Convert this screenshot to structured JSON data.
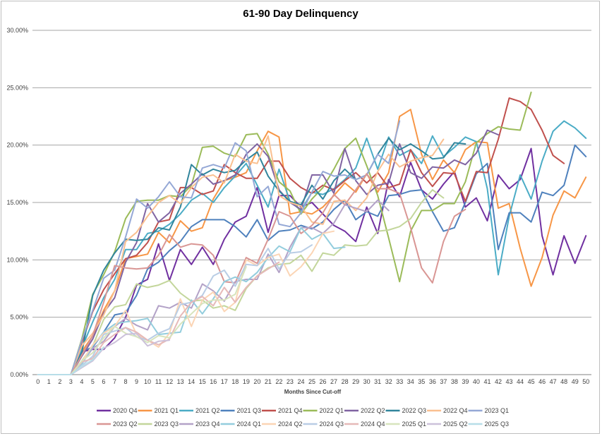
{
  "chart_data": {
    "type": "line",
    "title": "61-90 Day Delinquency",
    "xlabel": "Months Since Cut-off",
    "ylabel": "",
    "x": [
      0,
      1,
      2,
      3,
      4,
      5,
      6,
      7,
      8,
      9,
      10,
      11,
      12,
      13,
      14,
      15,
      16,
      17,
      18,
      19,
      20,
      21,
      22,
      23,
      24,
      25,
      26,
      27,
      28,
      29,
      30,
      31,
      32,
      33,
      34,
      35,
      36,
      37,
      38,
      39,
      40,
      41,
      42,
      43,
      44,
      45,
      46,
      47,
      48,
      49,
      50
    ],
    "ylim": [
      0,
      30
    ],
    "yticks": [
      "0.00%",
      "5.00%",
      "10.00%",
      "15.00%",
      "20.00%",
      "25.00%",
      "30.00%"
    ],
    "ytick_values": [
      0,
      5,
      10,
      15,
      20,
      25,
      30
    ],
    "grid": true,
    "legend_position": "bottom",
    "series": [
      {
        "name": "2020 Q4",
        "color": "#7030a0",
        "values": [
          0,
          0,
          0,
          0,
          2.0,
          2.2,
          2.2,
          3.2,
          5.0,
          7.8,
          8.3,
          11.4,
          8.2,
          10.9,
          9.6,
          11.1,
          9.6,
          11.8,
          13.3,
          13.8,
          16.3,
          12.4,
          15.6,
          15.6,
          14.6,
          15.0,
          14.0,
          13.0,
          12.5,
          11.6,
          14.6,
          12.3,
          17.0,
          15.5,
          18.5,
          16.1,
          15.3,
          16.6,
          17.7,
          14.6,
          15.4,
          13.4,
          17.4,
          16.2,
          17.0,
          19.7,
          12.1,
          8.7,
          12.1,
          9.7,
          12.1
        ]
      },
      {
        "name": "2021 Q1",
        "color": "#f79646",
        "values": [
          0,
          0,
          0,
          0,
          2.0,
          3.4,
          5.6,
          7.3,
          10.1,
          10.3,
          10.5,
          12.4,
          11.5,
          13.4,
          12.5,
          12.8,
          15.3,
          16.9,
          17.2,
          17.6,
          19.5,
          21.2,
          20.7,
          14.0,
          14.2,
          14.0,
          14.6,
          15.6,
          16.7,
          15.9,
          17.5,
          15.9,
          17.6,
          22.5,
          23.1,
          19.2,
          17.0,
          18.7,
          17.6,
          19.6,
          20.3,
          20.2,
          14.5,
          14.9,
          11.0,
          7.7,
          10.2,
          13.9,
          16.0,
          15.4,
          17.2
        ]
      },
      {
        "name": "2021 Q2",
        "color": "#4bacc6",
        "values": [
          0,
          0,
          0,
          0,
          2.3,
          4.6,
          6.7,
          8.3,
          10.9,
          10.9,
          12.3,
          12.5,
          13.1,
          14.0,
          15.2,
          15.8,
          15.0,
          16.3,
          17.3,
          18.4,
          16.5,
          14.6,
          17.9,
          15.1,
          14.3,
          15.9,
          15.7,
          16.2,
          17.0,
          18.0,
          20.6,
          17.9,
          20.7,
          19.1,
          19.6,
          18.4,
          20.8,
          19.0,
          19.8,
          20.7,
          20.3,
          16.2,
          8.7,
          13.8,
          17.4,
          15.3,
          18.6,
          21.2,
          22.1,
          21.5,
          20.6
        ]
      },
      {
        "name": "2021 Q3",
        "color": "#4f81bd",
        "values": [
          0,
          0,
          0,
          0,
          2.0,
          2.4,
          3.7,
          5.2,
          5.4,
          6.9,
          9.2,
          9.8,
          10.8,
          11.6,
          12.9,
          13.5,
          13.5,
          13.5,
          12.9,
          12.0,
          13.5,
          11.7,
          12.5,
          12.6,
          13.0,
          12.7,
          13.3,
          14.4,
          15.2,
          13.5,
          14.2,
          13.8,
          15.6,
          15.7,
          16.0,
          16.1,
          14.2,
          12.5,
          12.8,
          15.0,
          17.5,
          18.4,
          10.9,
          14.1,
          14.1,
          13.3,
          15.9,
          15.6,
          16.5,
          20.0,
          19.0
        ]
      },
      {
        "name": "2021 Q4",
        "color": "#c0504d",
        "values": [
          0,
          0,
          0,
          0,
          2.8,
          5.5,
          7.4,
          8.8,
          10.1,
          10.4,
          11.5,
          13.3,
          13.5,
          16.3,
          16.3,
          15.7,
          16.0,
          18.3,
          17.6,
          17.1,
          17.1,
          18.6,
          18.6,
          17.1,
          16.3,
          15.8,
          16.5,
          16.1,
          16.9,
          17.6,
          16.7,
          17.6,
          16.3,
          16.6,
          19.6,
          17.6,
          16.4,
          17.6,
          17.5,
          15.1,
          17.7,
          17.6,
          20.5,
          24.1,
          23.8,
          23.1,
          21.3,
          19.1,
          18.4,
          null,
          null
        ]
      },
      {
        "name": "2022 Q1",
        "color": "#9bbb59",
        "values": [
          0,
          0,
          0,
          0,
          3.1,
          7.0,
          8.7,
          10.7,
          13.6,
          15.1,
          15.2,
          15.2,
          15.6,
          15.5,
          16.5,
          19.8,
          19.9,
          19.3,
          19.0,
          20.9,
          21.0,
          19.2,
          16.8,
          16.0,
          14.0,
          15.3,
          16.3,
          17.9,
          19.7,
          20.6,
          18.2,
          15.6,
          11.9,
          8.1,
          12.5,
          14.3,
          14.3,
          14.9,
          14.9,
          16.8,
          20.2,
          21.0,
          21.6,
          21.4,
          21.3,
          24.6,
          null,
          null,
          null,
          null,
          null
        ]
      },
      {
        "name": "2022 Q2",
        "color": "#8064a2",
        "values": [
          0,
          0,
          0,
          0,
          1.6,
          3.1,
          5.4,
          6.7,
          9.8,
          11.5,
          14.9,
          13.3,
          14.1,
          15.8,
          16.6,
          17.5,
          16.6,
          16.9,
          17.4,
          19.2,
          20.1,
          19.0,
          16.1,
          15.0,
          14.4,
          17.4,
          17.4,
          15.8,
          19.7,
          16.9,
          15.7,
          16.5,
          16.7,
          20.1,
          17.6,
          17.1,
          18.1,
          18.0,
          18.7,
          18.3,
          19.3,
          21.3,
          20.9,
          null,
          null,
          null,
          null,
          null,
          null,
          null,
          null
        ]
      },
      {
        "name": "2022 Q3",
        "color": "#31859c",
        "values": [
          0,
          0,
          0,
          0,
          1.9,
          6.9,
          9.1,
          10.6,
          11.8,
          11.7,
          11.8,
          12.8,
          12.6,
          14.6,
          18.3,
          17.4,
          17.9,
          17.6,
          17.8,
          18.7,
          19.4,
          17.3,
          16.0,
          15.1,
          14.8,
          16.5,
          15.3,
          16.9,
          17.9,
          17.0,
          17.4,
          19.2,
          20.6,
          19.6,
          20.1,
          19.5,
          18.8,
          18.9,
          20.2,
          20.1,
          null,
          null,
          null,
          null,
          null,
          null,
          null,
          null,
          null,
          null,
          null
        ]
      },
      {
        "name": "2022 Q4",
        "color": "#fac090",
        "values": [
          0,
          0,
          0,
          0,
          2.5,
          3.6,
          5.2,
          7.3,
          11.6,
          12.4,
          13.8,
          15.0,
          15.6,
          14.9,
          16.3,
          17.2,
          17.4,
          16.7,
          19.2,
          18.6,
          18.4,
          20.8,
          15.6,
          15.0,
          14.7,
          13.3,
          13.1,
          15.1,
          15.2,
          14.3,
          15.4,
          17.7,
          19.2,
          18.1,
          18.6,
          18.9,
          19.1,
          20.5,
          null,
          null,
          null,
          null,
          null,
          null,
          null,
          null,
          null,
          null,
          null,
          null,
          null
        ]
      },
      {
        "name": "2023 Q1",
        "color": "#95a8d6",
        "values": [
          0,
          0,
          0,
          0,
          3.0,
          5.6,
          8.4,
          9.1,
          12.0,
          15.3,
          14.5,
          15.5,
          16.8,
          15.5,
          15.4,
          18.0,
          18.3,
          18.0,
          20.2,
          19.5,
          15.5,
          16.4,
          13.1,
          12.9,
          14.1,
          15.9,
          17.7,
          17.3,
          17.4,
          17.0,
          17.4,
          19.2,
          18.4,
          22.1,
          null,
          null,
          null,
          null,
          null,
          null,
          null,
          null,
          null,
          null,
          null,
          null,
          null,
          null,
          null,
          null,
          null
        ]
      },
      {
        "name": "2023 Q2",
        "color": "#d99694",
        "values": [
          0,
          0,
          0,
          0,
          1.7,
          3.4,
          6.3,
          9.5,
          9.3,
          9.2,
          9.3,
          10.4,
          12.2,
          11.1,
          11.4,
          11.3,
          10.4,
          8.1,
          8.0,
          10.2,
          9.7,
          11.8,
          14.2,
          13.8,
          12.3,
          13.0,
          14.1,
          15.7,
          14.8,
          16.1,
          17.5,
          16.2,
          16.2,
          15.8,
          12.8,
          9.3,
          8.0,
          11.6,
          13.8,
          14.4,
          null,
          null,
          null,
          null,
          null,
          null,
          null,
          null,
          null,
          null,
          null
        ]
      },
      {
        "name": "2023 Q3",
        "color": "#c3d69b",
        "values": [
          0,
          0,
          0,
          0,
          1.2,
          2.5,
          4.8,
          5.9,
          6.1,
          7.9,
          7.6,
          7.8,
          8.2,
          7.1,
          6.4,
          6.5,
          5.8,
          6.0,
          5.6,
          7.5,
          8.6,
          9.3,
          9.6,
          9.7,
          10.4,
          9.0,
          10.6,
          10.4,
          11.3,
          11.2,
          11.3,
          12.5,
          12.6,
          12.9,
          13.6,
          15.0,
          16.1,
          15.4,
          null,
          null,
          null,
          null,
          null,
          null,
          null,
          null,
          null,
          null,
          null,
          null,
          null
        ]
      },
      {
        "name": "2023 Q4",
        "color": "#b3a2c7",
        "values": [
          0,
          0,
          0,
          0,
          1.0,
          2.3,
          2.9,
          4.2,
          4.9,
          4.3,
          3.9,
          6.0,
          5.8,
          6.3,
          5.8,
          7.9,
          7.3,
          6.4,
          8.1,
          8.3,
          8.3,
          10.5,
          8.9,
          11.1,
          12.8,
          12.8,
          12.3,
          13.2,
          14.8,
          14.5,
          14.2,
          15.2,
          14.3,
          null,
          null,
          null,
          null,
          null,
          null,
          null,
          null,
          null,
          null,
          null,
          null,
          null,
          null,
          null,
          null,
          null,
          null
        ]
      },
      {
        "name": "2024 Q1",
        "color": "#93cddd",
        "values": [
          0,
          0,
          0,
          0,
          0.9,
          2.5,
          3.7,
          4.4,
          4.6,
          4.7,
          4.9,
          3.5,
          3.6,
          3.7,
          6.5,
          5.3,
          6.6,
          8.1,
          8.5,
          8.1,
          8.9,
          10.2,
          11.2,
          10.7,
          12.8,
          11.8,
          12.3,
          11.0,
          11.1,
          null,
          null,
          null,
          null,
          null,
          null,
          null,
          null,
          null,
          null,
          null,
          null,
          null,
          null,
          null,
          null,
          null,
          null,
          null,
          null,
          null,
          null
        ]
      },
      {
        "name": "2024 Q2",
        "color": "#fbd5b5",
        "values": [
          0,
          0,
          0,
          0,
          1.1,
          2.6,
          3.6,
          4.2,
          5.6,
          3.5,
          3.0,
          2.4,
          3.6,
          6.6,
          4.2,
          6.5,
          7.2,
          5.5,
          6.3,
          10.0,
          9.5,
          10.2,
          10.5,
          8.6,
          9.4,
          10.6,
          12.3,
          12.5,
          null,
          null,
          null,
          null,
          null,
          null,
          null,
          null,
          null,
          null,
          null,
          null,
          null,
          null,
          null,
          null,
          null,
          null,
          null,
          null,
          null,
          null,
          null
        ]
      },
      {
        "name": "2024 Q3",
        "color": "#b9cde5",
        "values": [
          0,
          0,
          0,
          0,
          0.8,
          1.6,
          3.5,
          3.8,
          4.1,
          3.3,
          3.0,
          3.6,
          4.0,
          6.1,
          6.3,
          6.9,
          8.6,
          9.1,
          7.7,
          9.6,
          9.5,
          11.0,
          9.2,
          10.6,
          10.7,
          11.3,
          null,
          null,
          null,
          null,
          null,
          null,
          null,
          null,
          null,
          null,
          null,
          null,
          null,
          null,
          null,
          null,
          null,
          null,
          null,
          null,
          null,
          null,
          null,
          null,
          null
        ]
      },
      {
        "name": "2024 Q4",
        "color": "#e6b9b8",
        "values": [
          0,
          0,
          0,
          0,
          1.1,
          1.4,
          2.8,
          3.5,
          4.1,
          3.7,
          3.0,
          2.6,
          3.1,
          5.1,
          6.3,
          6.8,
          6.0,
          7.6,
          6.3,
          7.6,
          8.6,
          9.2,
          9.8,
          null,
          null,
          null,
          null,
          null,
          null,
          null,
          null,
          null,
          null,
          null,
          null,
          null,
          null,
          null,
          null,
          null,
          null,
          null,
          null,
          null,
          null,
          null,
          null,
          null,
          null,
          null,
          null
        ]
      },
      {
        "name": "2025 Q1",
        "color": "#d7e4bd",
        "values": [
          0,
          0,
          0,
          0,
          1.2,
          1.9,
          3.2,
          4.2,
          3.6,
          3.3,
          2.8,
          3.4,
          3.2,
          4.4,
          5.3,
          6.2,
          6.5,
          6.5,
          7.0,
          9.4,
          null,
          null,
          null,
          null,
          null,
          null,
          null,
          null,
          null,
          null,
          null,
          null,
          null,
          null,
          null,
          null,
          null,
          null,
          null,
          null,
          null,
          null,
          null,
          null,
          null,
          null,
          null,
          null,
          null,
          null,
          null
        ]
      },
      {
        "name": "2025 Q2",
        "color": "#ccc1da",
        "values": [
          0,
          0,
          0,
          0,
          0.6,
          1.2,
          2.3,
          2.8,
          3.5,
          3.6,
          2.5,
          2.9,
          3.0,
          null,
          null,
          null,
          null,
          null,
          null,
          null,
          null,
          null,
          null,
          null,
          null,
          null,
          null,
          null,
          null,
          null,
          null,
          null,
          null,
          null,
          null,
          null,
          null,
          null,
          null,
          null,
          null,
          null,
          null,
          null,
          null,
          null,
          null,
          null,
          null,
          null,
          null
        ]
      },
      {
        "name": "2025 Q3",
        "color": "#b7dee8",
        "values": [
          0,
          0,
          0,
          0,
          0.7,
          1.3,
          2.4,
          null,
          null,
          null,
          null,
          null,
          null,
          null,
          null,
          null,
          null,
          null,
          null,
          null,
          null,
          null,
          null,
          null,
          null,
          null,
          null,
          null,
          null,
          null,
          null,
          null,
          null,
          null,
          null,
          null,
          null,
          null,
          null,
          null,
          null,
          null,
          null,
          null,
          null,
          null,
          null,
          null,
          null,
          null,
          null
        ]
      }
    ]
  }
}
